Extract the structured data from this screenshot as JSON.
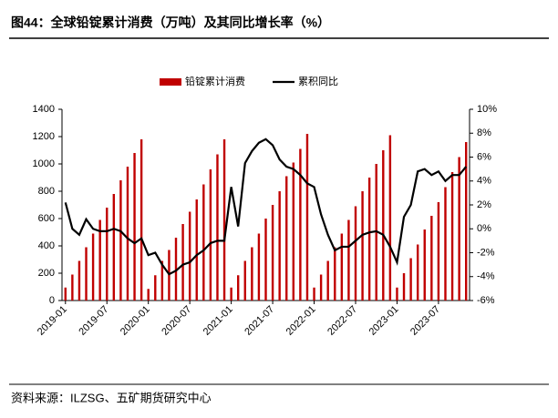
{
  "title": "图44：全球铅锭累计消费（万吨）及其同比增长率（%）",
  "source": "资料来源：ILZSG、五矿期货研究中心",
  "chart_data": {
    "type": "bar-line",
    "categories": [
      "2019-01",
      null,
      null,
      null,
      null,
      null,
      "2019-07",
      null,
      null,
      null,
      null,
      null,
      "2020-01",
      null,
      null,
      null,
      null,
      null,
      "2020-07",
      null,
      null,
      null,
      null,
      null,
      "2021-01",
      null,
      null,
      null,
      null,
      null,
      "2021-07",
      null,
      null,
      null,
      null,
      null,
      "2022-01",
      null,
      null,
      null,
      null,
      null,
      "2022-07",
      null,
      null,
      null,
      null,
      null,
      "2023-01",
      null,
      null,
      null,
      null,
      null,
      "2023-07",
      null,
      null,
      null,
      null
    ],
    "series": [
      {
        "name": "铅锭累计消费",
        "type": "bar",
        "color": "#c00000",
        "values": [
          95,
          190,
          290,
          390,
          490,
          590,
          680,
          780,
          880,
          980,
          1080,
          1180,
          85,
          185,
          290,
          370,
          460,
          560,
          650,
          740,
          850,
          960,
          1070,
          1180,
          95,
          185,
          290,
          390,
          490,
          600,
          700,
          800,
          910,
          1010,
          1110,
          1220,
          95,
          190,
          290,
          390,
          490,
          590,
          690,
          800,
          900,
          1000,
          1100,
          1210,
          95,
          200,
          310,
          410,
          520,
          620,
          720,
          830,
          940,
          1050,
          1160
        ]
      },
      {
        "name": "累积同比",
        "type": "line",
        "axis": "y2",
        "color": "#000000",
        "values": [
          2.2,
          0,
          -0.5,
          0.8,
          0,
          -0.2,
          -0.2,
          0,
          -0.2,
          -0.8,
          -1.2,
          -0.8,
          -2.2,
          -2.0,
          -3.0,
          -3.8,
          -3.5,
          -3.0,
          -2.8,
          -2.2,
          -1.8,
          -1.2,
          -1.0,
          -1.0,
          3.5,
          0.2,
          5.5,
          6.5,
          7.2,
          7.5,
          7.0,
          5.8,
          5.2,
          5.0,
          4.5,
          3.8,
          3.5,
          1.2,
          -0.5,
          -1.8,
          -1.5,
          -1.5,
          -1.0,
          -0.5,
          -0.3,
          -0.2,
          -0.5,
          -1.5,
          -2.8,
          1.0,
          2.0,
          4.8,
          5.0,
          4.5,
          4.8,
          4.0,
          4.5,
          4.5,
          5.2
        ]
      }
    ],
    "ylim": [
      0,
      1400
    ],
    "yticks": [
      0,
      200,
      400,
      600,
      800,
      1000,
      1200,
      1400
    ],
    "y2lim": [
      -6,
      10
    ],
    "y2ticks": [
      {
        "value": -6,
        "label": "-6%"
      },
      {
        "value": -4,
        "label": "-4%"
      },
      {
        "value": -2,
        "label": "-2%"
      },
      {
        "value": 0,
        "label": "0%"
      },
      {
        "value": 2,
        "label": "2%"
      },
      {
        "value": 4,
        "label": "4%"
      },
      {
        "value": 6,
        "label": "6%"
      },
      {
        "value": 8,
        "label": "8%"
      },
      {
        "value": 10,
        "label": "10%"
      }
    ],
    "legend": "top"
  }
}
